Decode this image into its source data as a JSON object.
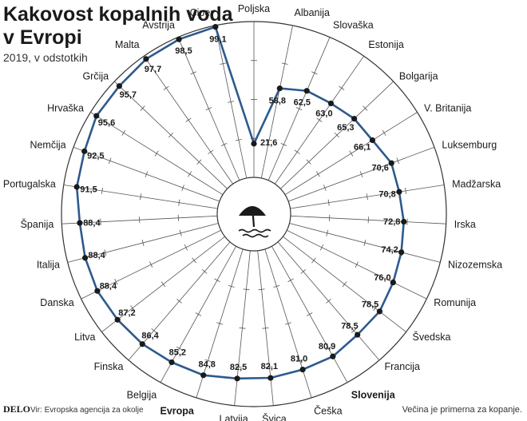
{
  "header": {
    "title_line1": "Kakovost kopalnih voda",
    "title_line2": "v Evropi",
    "subtitle": "2019, v odstotkih"
  },
  "footer": {
    "logo": "DELO",
    "source": "Vir: Evropska agencija za okolje",
    "note": "Večina je primerna za kopanje."
  },
  "chart_data": {
    "type": "radar",
    "title": "Kakovost kopalnih voda v Evropi",
    "subtitle": "2019, v odstotkih",
    "rlim": [
      0,
      100
    ],
    "highlighted": [
      "Evropa",
      "Slovenija"
    ],
    "categories": [
      "Poljska",
      "Albanija",
      "Slovaška",
      "Estonija",
      "Bolgarija",
      "V. Britanija",
      "Luksemburg",
      "Madžarska",
      "Irska",
      "Nizozemska",
      "Romunija",
      "Švedska",
      "Francija",
      "Slovenija",
      "Češka",
      "Švica",
      "Latvija",
      "Evropa",
      "Belgija",
      "Finska",
      "Litva",
      "Danska",
      "Italija",
      "Španija",
      "Portugalska",
      "Nemčija",
      "Hrvaška",
      "Grčija",
      "Malta",
      "Avstrija",
      "Ciper"
    ],
    "values": [
      21.6,
      58.8,
      62.5,
      63.0,
      65.3,
      66.1,
      70.6,
      70.8,
      72.8,
      74.2,
      76.0,
      78.5,
      78.5,
      80.9,
      81.0,
      82.1,
      82.5,
      84.8,
      85.2,
      86.4,
      87.2,
      88.4,
      88.4,
      88.4,
      91.5,
      92.5,
      95.6,
      95.7,
      97.7,
      98.5,
      99.1
    ],
    "value_labels": [
      "21,6",
      "58,8",
      "62,5",
      "63,0",
      "65,3",
      "66,1",
      "70,6",
      "70,8",
      "72,8",
      "74,2",
      "76,0",
      "78,5",
      "78,5",
      "80,9",
      "81,0",
      "82,1",
      "82,5",
      "84,8",
      "85,2",
      "86,4",
      "87,2",
      "88,4",
      "88,4",
      "88,4",
      "91,5",
      "92,5",
      "95,6",
      "95,7",
      "97,7",
      "98,5",
      "99,1"
    ],
    "colors": {
      "line": "#2d5a8e",
      "marker": "#1a1a1a",
      "grid": "#555555",
      "circle": "#333333"
    },
    "center_icon": "beach-umbrella-waves-icon"
  }
}
